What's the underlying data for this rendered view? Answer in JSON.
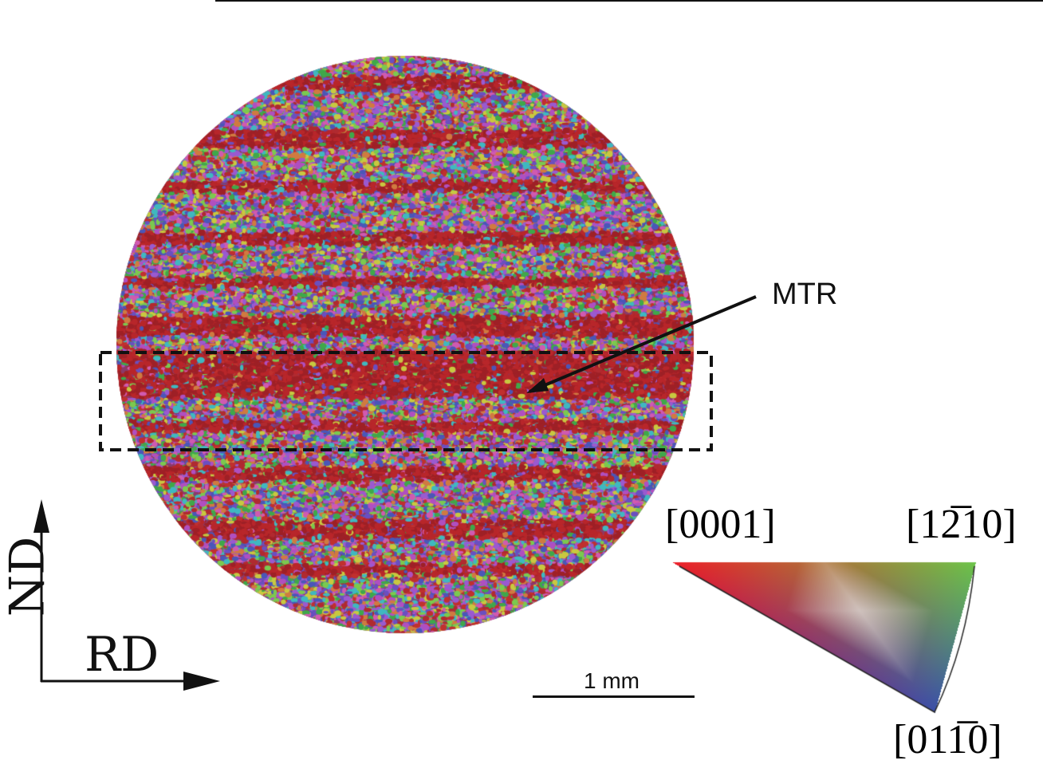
{
  "annotation": {
    "label": "MTR"
  },
  "axes": {
    "vertical": "ND",
    "horizontal": "RD"
  },
  "scale_bar": {
    "label": "1 mm"
  },
  "ipf_legend": {
    "corner_top_left": "[0001]",
    "corner_top_right": "[12̅10]",
    "corner_bottom": "[011̅0]",
    "colors": {
      "0001": "#e8202a",
      "1210": "#6cc04a",
      "0110": "#3b4fa8"
    }
  }
}
